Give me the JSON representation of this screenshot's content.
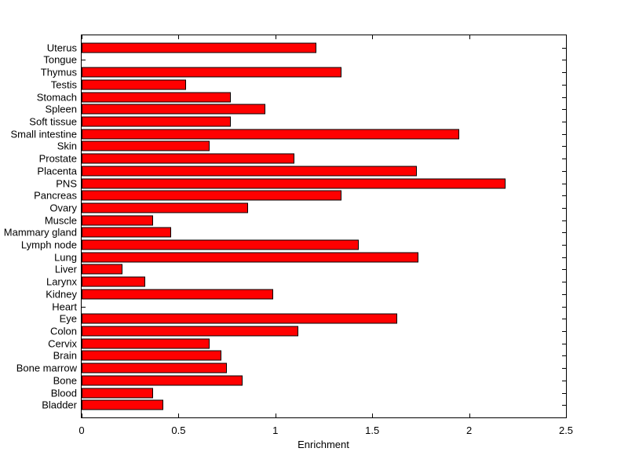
{
  "chart_data": {
    "type": "bar",
    "orientation": "horizontal",
    "title": "",
    "xlabel": "Enrichment",
    "ylabel": "",
    "xlim": [
      0,
      2.5
    ],
    "x_ticks": [
      0,
      0.5,
      1,
      1.5,
      2,
      2.5
    ],
    "x_tick_labels": [
      "0",
      "0.5",
      "1",
      "1.5",
      "2",
      "2.5"
    ],
    "grid": false,
    "legend": null,
    "bar_color": "#ff0000",
    "bar_border_color": "#000000",
    "axis_color": "#000000",
    "background_color": "#ffffff",
    "categories_top_to_bottom": [
      "Uterus",
      "Tongue",
      "Thymus",
      "Testis",
      "Stomach",
      "Spleen",
      "Soft tissue",
      "Small intestine",
      "Skin",
      "Prostate",
      "Placenta",
      "PNS",
      "Pancreas",
      "Ovary",
      "Muscle",
      "Mammary gland",
      "Lymph node",
      "Lung",
      "Liver",
      "Larynx",
      "Kidney",
      "Heart",
      "Eye",
      "Colon",
      "Cervix",
      "Brain",
      "Bone marrow",
      "Bone",
      "Blood",
      "Bladder"
    ],
    "values": [
      1.21,
      0,
      1.34,
      0.54,
      0.77,
      0.95,
      0.77,
      1.95,
      0.66,
      1.1,
      1.73,
      2.19,
      1.34,
      0.86,
      0.37,
      0.46,
      1.43,
      1.74,
      0.21,
      0.33,
      0.99,
      0,
      1.63,
      1.12,
      0.66,
      0.72,
      0.75,
      0.83,
      0.37,
      0.42
    ]
  }
}
